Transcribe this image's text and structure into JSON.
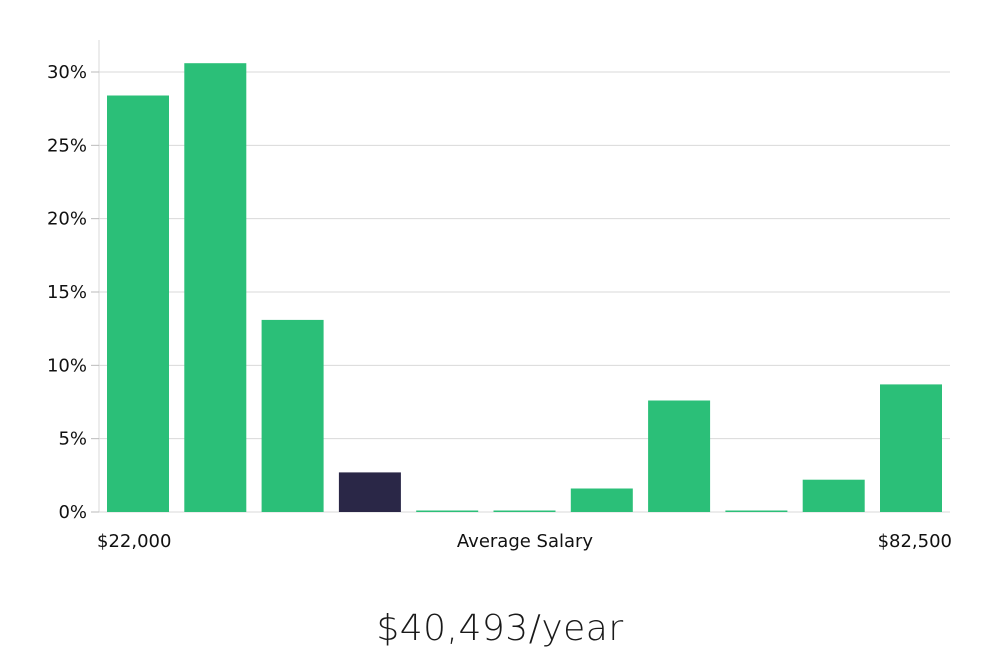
{
  "chart_data": {
    "type": "bar",
    "title": "",
    "xlabel": "Average Salary",
    "ylabel": "",
    "ylim": [
      0,
      32
    ],
    "yticks": [
      0,
      5,
      10,
      15,
      20,
      25,
      30
    ],
    "ytick_labels": [
      "0%",
      "5%",
      "10%",
      "15%",
      "20%",
      "25%",
      "30%"
    ],
    "x_range_labels": {
      "min": "$22,000",
      "max": "$82,500"
    },
    "values": [
      28.4,
      30.6,
      13.1,
      2.7,
      0.1,
      0.1,
      1.6,
      7.6,
      0.1,
      2.2,
      8.7
    ],
    "highlight_index": 3,
    "colors": {
      "bar": "#2bbf78",
      "highlight": "#2a2747",
      "grid": "#d9d9d9"
    }
  },
  "summary": {
    "average_salary": "$40,493/year"
  }
}
